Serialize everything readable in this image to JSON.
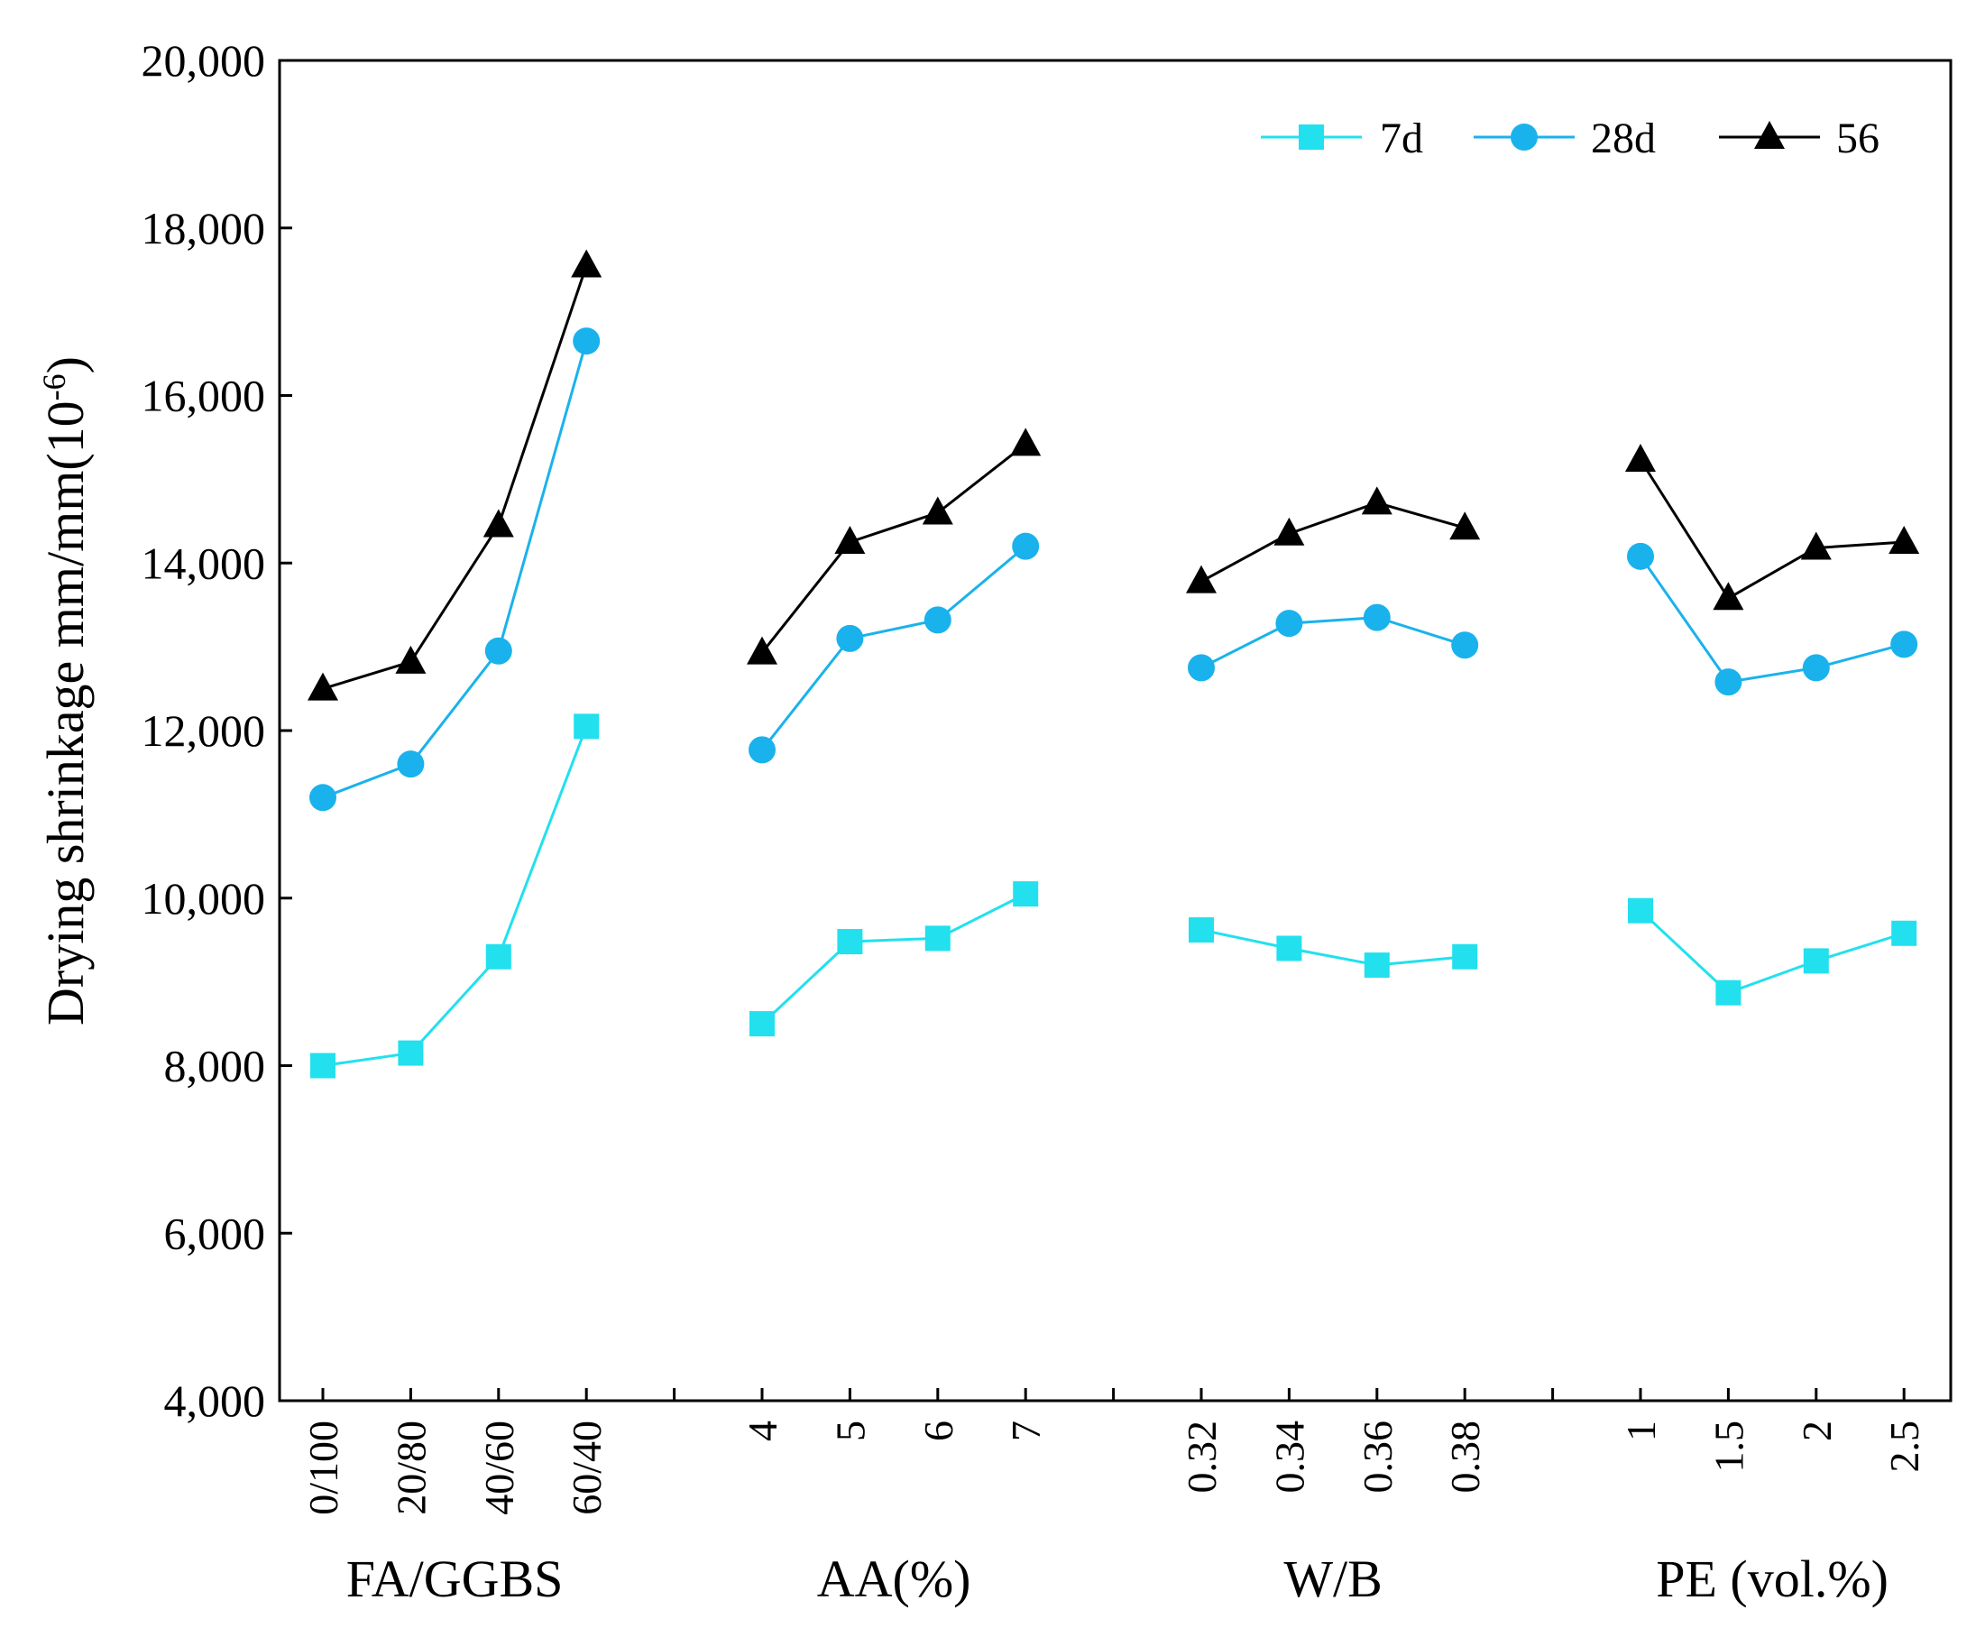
{
  "chart_data": {
    "type": "line",
    "title": "",
    "ylabel": "Drying shrinkage mm/mm(10",
    "ylabel_superscript": "-6",
    "ylabel_close": ")",
    "ylim": [
      4000,
      20000
    ],
    "yticks": [
      4000,
      6000,
      8000,
      10000,
      12000,
      14000,
      16000,
      18000,
      20000
    ],
    "ytick_labels": [
      "4,000",
      "6,000",
      "8,000",
      "10,000",
      "12,000",
      "14,000",
      "16,000",
      "18,000",
      "20,000"
    ],
    "x_slot_count": 19,
    "x_slot_labels": [
      "0/100",
      "20/80",
      "40/60",
      "60/40",
      "",
      "4",
      "5",
      "6",
      "7",
      "",
      "0.32",
      "0.34",
      "0.36",
      "0.38",
      "",
      "1",
      "1.5",
      "2",
      "2.5"
    ],
    "groups": [
      {
        "label": "FA/GGBS",
        "slots": [
          0,
          1,
          2,
          3
        ]
      },
      {
        "label": "AA(%)",
        "slots": [
          5,
          6,
          7,
          8
        ]
      },
      {
        "label": "W/B",
        "slots": [
          10,
          11,
          12,
          13
        ]
      },
      {
        "label": "PE (vol.%)",
        "slots": [
          15,
          16,
          17,
          18
        ]
      }
    ],
    "series": [
      {
        "name": "7d",
        "color": "#22e0ee",
        "marker": "square",
        "groups": [
          [
            8000,
            8150,
            9300,
            12050
          ],
          [
            8500,
            9480,
            9520,
            10050
          ],
          [
            9620,
            9400,
            9200,
            9300
          ],
          [
            9850,
            8870,
            9250,
            9580
          ]
        ]
      },
      {
        "name": "28d",
        "color": "#1ab2ec",
        "marker": "circle",
        "groups": [
          [
            11200,
            11600,
            12950,
            16650
          ],
          [
            11770,
            13100,
            13320,
            14200
          ],
          [
            12750,
            13280,
            13350,
            13020
          ],
          [
            14080,
            12580,
            12750,
            13030
          ]
        ]
      },
      {
        "name": "56",
        "color": "#000000",
        "marker": "triangle",
        "groups": [
          [
            12500,
            12820,
            14450,
            17550
          ],
          [
            12930,
            14250,
            14600,
            15420
          ],
          [
            13780,
            14350,
            14720,
            14420
          ],
          [
            15230,
            13580,
            14180,
            14250
          ]
        ]
      }
    ],
    "legend": {
      "position": "top-right",
      "entries": [
        "7d",
        "28d",
        "56"
      ]
    }
  }
}
